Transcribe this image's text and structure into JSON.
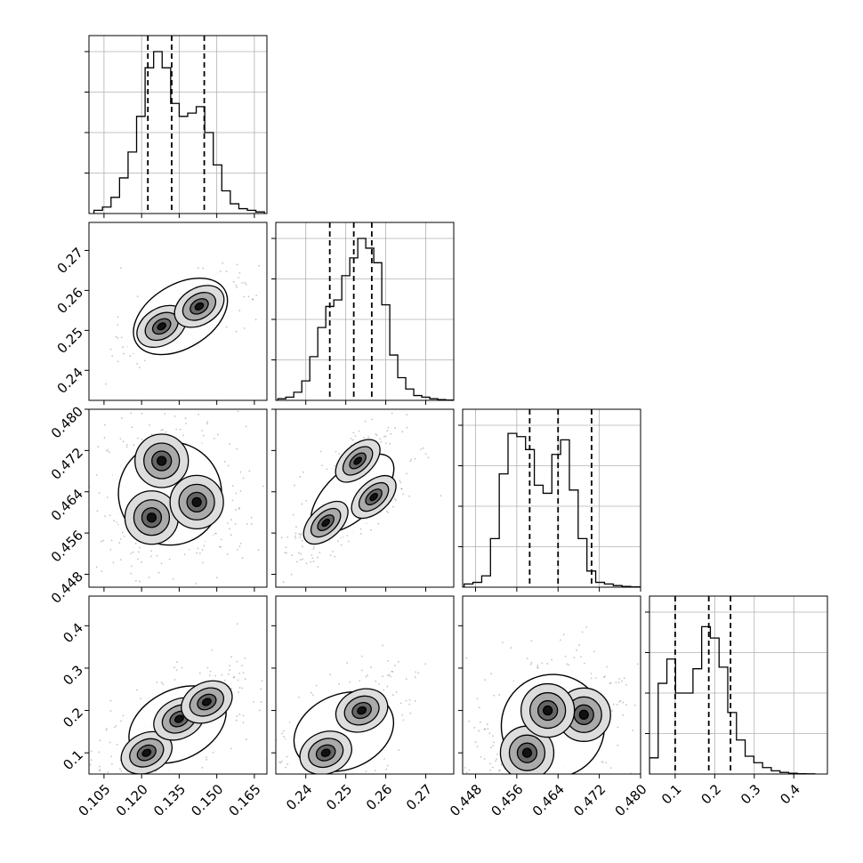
{
  "colors": {
    "axis": "#000000",
    "grid": "#b0b0b0",
    "hist": "#000000",
    "quantile": "#000000",
    "sample": "#555555",
    "density_dark": "#111111"
  },
  "chart_data": [
    {
      "type": "histogram",
      "panel": "hist-p0",
      "grid": true,
      "xlim": [
        0.099,
        0.17
      ],
      "bins_start": 0.101,
      "bin_width": 0.0034,
      "counts": [
        0.02,
        0.04,
        0.1,
        0.22,
        0.38,
        0.6,
        0.9,
        1.0,
        0.9,
        0.68,
        0.6,
        0.62,
        0.66,
        0.5,
        0.3,
        0.14,
        0.06,
        0.03,
        0.02,
        0.01
      ],
      "quantiles": [
        0.1225,
        0.132,
        0.145
      ],
      "xticks": [
        0.105,
        0.12,
        0.135,
        0.15,
        0.165
      ],
      "xtick_labels": []
    },
    {
      "type": "histogram",
      "panel": "hist-p1",
      "grid": true,
      "xlim": [
        0.2325,
        0.277
      ],
      "bins_start": 0.233,
      "bin_width": 0.002,
      "counts": [
        0.01,
        0.02,
        0.05,
        0.12,
        0.27,
        0.45,
        0.58,
        0.62,
        0.77,
        0.88,
        1.0,
        0.94,
        0.85,
        0.59,
        0.28,
        0.14,
        0.07,
        0.03,
        0.02,
        0.01,
        0.005,
        0.002
      ],
      "quantiles": [
        0.246,
        0.252,
        0.2565
      ],
      "xticks": [
        0.24,
        0.25,
        0.26,
        0.27
      ],
      "xtick_labels": []
    },
    {
      "type": "histogram",
      "panel": "hist-p2",
      "grid": true,
      "xlim": [
        0.4455,
        0.48
      ],
      "bins_start": 0.4458,
      "bin_width": 0.0017,
      "counts": [
        0.02,
        0.03,
        0.07,
        0.3,
        0.7,
        0.95,
        0.93,
        0.85,
        0.63,
        0.58,
        0.82,
        0.91,
        0.6,
        0.3,
        0.1,
        0.03,
        0.02,
        0.01,
        0.005,
        0.002
      ],
      "quantiles": [
        0.4585,
        0.464,
        0.4705
      ],
      "xticks": [
        0.448,
        0.456,
        0.464,
        0.472,
        0.48
      ],
      "xtick_labels": []
    },
    {
      "type": "histogram",
      "panel": "hist-p3",
      "grid": true,
      "xlim": [
        0.035,
        0.485
      ],
      "bins_start": 0.035,
      "bin_width": 0.022,
      "counts": [
        0.1,
        0.56,
        0.71,
        0.5,
        0.5,
        0.65,
        0.91,
        0.84,
        0.66,
        0.38,
        0.21,
        0.11,
        0.07,
        0.04,
        0.02,
        0.01,
        0.005,
        0.002,
        0.001
      ],
      "quantiles": [
        0.1,
        0.185,
        0.24
      ],
      "xticks": [
        0.1,
        0.2,
        0.3,
        0.4
      ],
      "xtick_labels": [
        "0.1",
        "0.2",
        "0.3",
        "0.4"
      ]
    },
    {
      "type": "scatter-density",
      "panel": "pair-p1-p0",
      "xlim": [
        0.099,
        0.17
      ],
      "ylim": [
        0.2325,
        0.277
      ],
      "corr": 0.7,
      "xticks": [
        0.105,
        0.12,
        0.135,
        0.15,
        0.165
      ],
      "xtick_labels": [],
      "yticks": [
        0.24,
        0.25,
        0.26,
        0.27
      ],
      "ytick_labels": [
        "0.24",
        "0.25",
        "0.26",
        "0.27"
      ],
      "modes": [
        {
          "x": 0.128,
          "y": 0.251
        },
        {
          "x": 0.143,
          "y": 0.256
        }
      ]
    },
    {
      "type": "scatter-density",
      "panel": "pair-p2-p0",
      "xlim": [
        0.099,
        0.17
      ],
      "ylim": [
        0.4455,
        0.48
      ],
      "corr": 0.0,
      "xticks": [
        0.105,
        0.12,
        0.135,
        0.15,
        0.165
      ],
      "xtick_labels": [],
      "yticks": [
        0.448,
        0.456,
        0.464,
        0.472,
        0.48
      ],
      "ytick_labels": [
        "0.448",
        "0.456",
        "0.464",
        "0.472",
        "0.480"
      ],
      "modes": [
        {
          "x": 0.128,
          "y": 0.47
        },
        {
          "x": 0.124,
          "y": 0.459
        },
        {
          "x": 0.142,
          "y": 0.462
        }
      ]
    },
    {
      "type": "scatter-density",
      "panel": "pair-p2-p1",
      "xlim": [
        0.2325,
        0.277
      ],
      "ylim": [
        0.4455,
        0.48
      ],
      "corr": 0.95,
      "xticks": [
        0.24,
        0.25,
        0.26,
        0.27
      ],
      "xtick_labels": [],
      "yticks": [
        0.448,
        0.456,
        0.464,
        0.472,
        0.48
      ],
      "ytick_labels": [],
      "modes": [
        {
          "x": 0.253,
          "y": 0.47
        },
        {
          "x": 0.257,
          "y": 0.463
        },
        {
          "x": 0.245,
          "y": 0.458
        }
      ]
    },
    {
      "type": "scatter-density",
      "panel": "pair-p3-p0",
      "xlim": [
        0.099,
        0.17
      ],
      "ylim": [
        0.05,
        0.47
      ],
      "corr": 0.6,
      "xticks": [
        0.105,
        0.12,
        0.135,
        0.15,
        0.165
      ],
      "xtick_labels": [
        "0.105",
        "0.120",
        "0.135",
        "0.150",
        "0.165"
      ],
      "yticks": [
        0.1,
        0.2,
        0.3,
        0.4
      ],
      "ytick_labels": [
        "0.1",
        "0.2",
        "0.3",
        "0.4"
      ],
      "modes": [
        {
          "x": 0.122,
          "y": 0.1
        },
        {
          "x": 0.135,
          "y": 0.18
        },
        {
          "x": 0.146,
          "y": 0.22
        }
      ]
    },
    {
      "type": "scatter-density",
      "panel": "pair-p3-p1",
      "xlim": [
        0.2325,
        0.277
      ],
      "ylim": [
        0.05,
        0.47
      ],
      "corr": 0.5,
      "xticks": [
        0.24,
        0.25,
        0.26,
        0.27
      ],
      "xtick_labels": [
        "0.24",
        "0.25",
        "0.26",
        "0.27"
      ],
      "yticks": [
        0.1,
        0.2,
        0.3,
        0.4
      ],
      "ytick_labels": [],
      "modes": [
        {
          "x": 0.245,
          "y": 0.1
        },
        {
          "x": 0.254,
          "y": 0.2
        }
      ]
    },
    {
      "type": "scatter-density",
      "panel": "pair-p3-p2",
      "xlim": [
        0.4455,
        0.48
      ],
      "ylim": [
        0.05,
        0.47
      ],
      "corr": 0.0,
      "xticks": [
        0.448,
        0.456,
        0.464,
        0.472,
        0.48
      ],
      "xtick_labels": [
        "0.448",
        "0.456",
        "0.464",
        "0.472",
        "0.480"
      ],
      "yticks": [
        0.1,
        0.2,
        0.3,
        0.4
      ],
      "ytick_labels": [],
      "modes": [
        {
          "x": 0.458,
          "y": 0.1
        },
        {
          "x": 0.469,
          "y": 0.19
        },
        {
          "x": 0.462,
          "y": 0.2
        }
      ]
    }
  ]
}
